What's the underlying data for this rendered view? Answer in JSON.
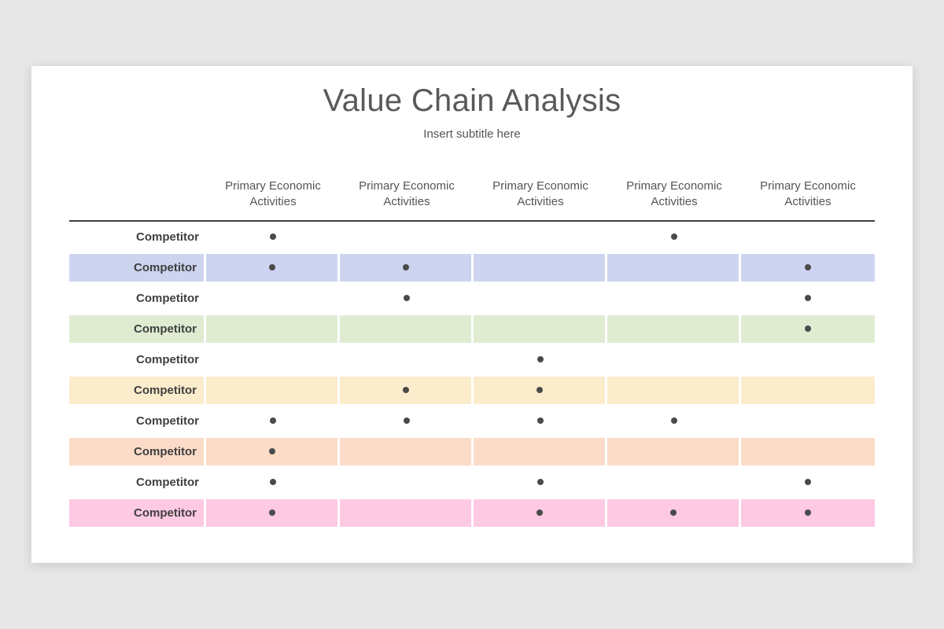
{
  "page": {
    "palette": {
      "page_bg": "#e8e7e8",
      "card_bg": "#ffffff",
      "title_color": "#595959",
      "subtitle_color": "#555555",
      "header_text_color": "#555555",
      "rule_color": "#3f3f3f",
      "label_color": "#404040",
      "dot_color": "#4a4a4a"
    }
  },
  "header": {
    "title": "Value Chain Analysis",
    "subtitle": "Insert subtitle here"
  },
  "chart_data": {
    "type": "table",
    "title": "Value Chain Analysis",
    "subtitle": "Insert subtitle here",
    "columns": [
      "Primary Economic Activities",
      "Primary Economic Activities",
      "Primary Economic Activities",
      "Primary Economic Activities",
      "Primary Economic Activities"
    ],
    "dot_color": "#4a4a4a",
    "rows": [
      {
        "label": "Competitor",
        "color": "#ffffff",
        "dots": [
          1,
          0,
          0,
          1,
          0
        ]
      },
      {
        "label": "Competitor",
        "color": "#ccd4ef",
        "dots": [
          1,
          1,
          0,
          0,
          1
        ]
      },
      {
        "label": "Competitor",
        "color": "#ffffff",
        "dots": [
          0,
          1,
          0,
          0,
          1
        ]
      },
      {
        "label": "Competitor",
        "color": "#dfecd2",
        "dots": [
          0,
          0,
          0,
          0,
          1
        ]
      },
      {
        "label": "Competitor",
        "color": "#ffffff",
        "dots": [
          0,
          0,
          1,
          0,
          0
        ]
      },
      {
        "label": "Competitor",
        "color": "#fbeccb",
        "dots": [
          0,
          1,
          1,
          0,
          0
        ]
      },
      {
        "label": "Competitor",
        "color": "#ffffff",
        "dots": [
          1,
          1,
          1,
          1,
          0
        ]
      },
      {
        "label": "Competitor",
        "color": "#fcdcc8",
        "dots": [
          1,
          0,
          0,
          0,
          0
        ]
      },
      {
        "label": "Competitor",
        "color": "#ffffff",
        "dots": [
          1,
          0,
          1,
          0,
          1
        ]
      },
      {
        "label": "Competitor",
        "color": "#fec9e3",
        "dots": [
          1,
          0,
          1,
          1,
          1
        ]
      }
    ]
  }
}
